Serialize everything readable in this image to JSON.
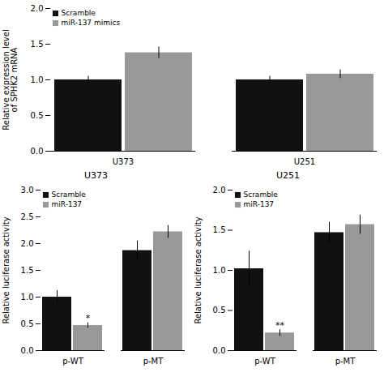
{
  "chart_data": [
    {
      "type": "bar",
      "ylabel": "Relative expression level\nof SPHK2 mRNA",
      "categories": [
        "U373",
        "U251"
      ],
      "series": [
        {
          "name": "Scramble",
          "color": "#111111",
          "values": [
            1.0,
            1.0
          ],
          "errors": [
            0.05,
            0.05
          ]
        },
        {
          "name": "miR-137 mimics",
          "color": "#999999",
          "values": [
            1.38,
            1.08
          ],
          "errors": [
            0.08,
            0.06
          ]
        }
      ],
      "ylim": [
        0,
        2.0
      ],
      "yticks": [
        {
          "value": 0,
          "label": "0.0"
        },
        0.5,
        {
          "value": 1,
          "label": "1.0"
        },
        1.5,
        {
          "value": 2,
          "label": "2.0"
        }
      ],
      "legend": "upper left",
      "grid": false
    },
    {
      "type": "bar",
      "title": "U373",
      "ylabel": "Relative luciferase activity",
      "categories": [
        "p-WT",
        "p-MT"
      ],
      "series": [
        {
          "name": "Scramble",
          "color": "#111111",
          "values": [
            1.0,
            1.87
          ],
          "errors": [
            0.12,
            0.18
          ]
        },
        {
          "name": "miR-137",
          "color": "#999999",
          "values": [
            0.47,
            2.22
          ],
          "errors": [
            0.05,
            0.12
          ]
        }
      ],
      "ylim": [
        0,
        3.0
      ],
      "yticks": [
        {
          "value": 0,
          "label": "0.0"
        },
        0.5,
        {
          "value": 1,
          "label": "1.0"
        },
        1.5,
        {
          "value": 2,
          "label": "2.0"
        },
        2.5,
        {
          "value": 3,
          "label": "3.0"
        }
      ],
      "annotations": [
        {
          "text": "*",
          "category": "p-WT",
          "series": "miR-137"
        }
      ],
      "legend": "upper left",
      "grid": false
    },
    {
      "type": "bar",
      "title": "U251",
      "ylabel": "Relative luciferase activity",
      "categories": [
        "p-WT",
        "p-MT"
      ],
      "series": [
        {
          "name": "Scramble",
          "color": "#111111",
          "values": [
            1.02,
            1.47
          ],
          "errors": [
            0.22,
            0.13
          ]
        },
        {
          "name": "miR-137",
          "color": "#999999",
          "values": [
            0.22,
            1.57
          ],
          "errors": [
            0.04,
            0.12
          ]
        }
      ],
      "ylim": [
        0,
        2.0
      ],
      "yticks": [
        {
          "value": 0,
          "label": "0.0"
        },
        0.5,
        {
          "value": 1,
          "label": "1.0"
        },
        1.5,
        {
          "value": 2,
          "label": "2.0"
        }
      ],
      "annotations": [
        {
          "text": "**",
          "category": "p-WT",
          "series": "miR-137"
        }
      ],
      "legend": "upper left",
      "grid": false
    }
  ]
}
